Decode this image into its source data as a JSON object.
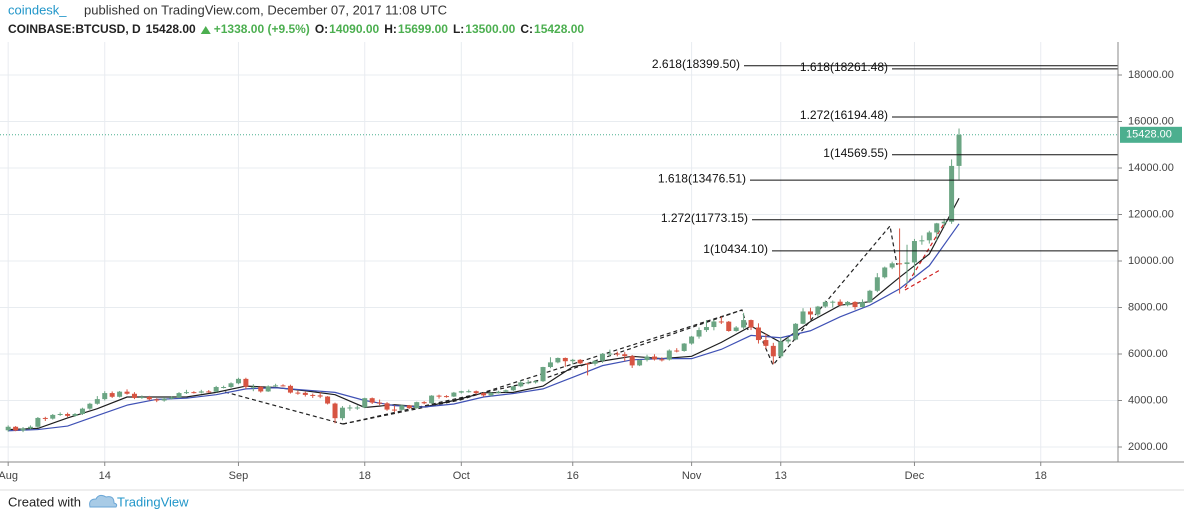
{
  "header": {
    "author": "coindesk_",
    "published": "published on TradingView.com, December 07, 2017 11:08 UTC",
    "symbol": "COINBASE:BTCUSD, D",
    "last": "15428.00",
    "change": "+1338.00 (+9.5%)",
    "o_label": "O:",
    "o": "14090.00",
    "h_label": "H:",
    "h": "15699.00",
    "l_label": "L:",
    "l": "13500.00",
    "c_label": "C:",
    "c": "15428.00"
  },
  "footer": {
    "created": "Created with",
    "brand": "TradingView"
  },
  "chart_data": {
    "type": "candlestick",
    "grid": true,
    "up_color": "#6ba583",
    "down_color": "#d75442",
    "xlim": [
      -1.1,
      149.4
    ],
    "xticks": [
      {
        "value": 0,
        "label": "Aug"
      },
      {
        "value": 13,
        "label": "14"
      },
      {
        "value": 31,
        "label": "Sep"
      },
      {
        "value": 48,
        "label": "18"
      },
      {
        "value": 61,
        "label": "Oct"
      },
      {
        "value": 76,
        "label": "16"
      },
      {
        "value": 92,
        "label": "Nov"
      },
      {
        "value": 104,
        "label": "13"
      },
      {
        "value": 122,
        "label": "Dec"
      },
      {
        "value": 139,
        "label": "18"
      }
    ],
    "ylim": [
      1355,
      19420
    ],
    "yticks": [
      {
        "value": 2000,
        "label": "2000.00"
      },
      {
        "value": 4000,
        "label": "4000.00"
      },
      {
        "value": 6000,
        "label": "6000.00"
      },
      {
        "value": 8000,
        "label": "8000.00"
      },
      {
        "value": 10000,
        "label": "10000.00"
      },
      {
        "value": 12000,
        "label": "12000.00"
      },
      {
        "value": 14000,
        "label": "14000.00"
      },
      {
        "value": 16000,
        "label": "16000.00"
      },
      {
        "value": 18000,
        "label": "18000.00"
      }
    ],
    "last_price": {
      "value": 15428,
      "label": "15428.00",
      "color": "#4caf8f"
    },
    "candles": {
      "open": [
        2720,
        2870,
        2710,
        2800,
        2870,
        3250,
        3220,
        3380,
        3420,
        3340,
        3420,
        3650,
        3860,
        4060,
        4320,
        4160,
        4380,
        4290,
        4110,
        4150,
        4050,
        4000,
        4080,
        4140,
        4320,
        4360,
        4340,
        4390,
        4380,
        4580,
        4580,
        4740,
        4930,
        4590,
        4590,
        4390,
        4610,
        4650,
        4630,
        4340,
        4330,
        4240,
        4220,
        4170,
        3870,
        3240,
        3690,
        3700,
        3700,
        4100,
        3910,
        3880,
        3610,
        3600,
        3790,
        3670,
        3930,
        3880,
        4210,
        4190,
        4170,
        4340,
        4400,
        4400,
        4320,
        4220,
        4330,
        4380,
        4440,
        4610,
        4780,
        4780,
        4830,
        5440,
        5640,
        5830,
        5690,
        5750,
        5600,
        5580,
        5710,
        6010,
        6020,
        5990,
        5910,
        5510,
        5740,
        5890,
        5770,
        5760,
        6150,
        6130,
        6450,
        6750,
        7030,
        7160,
        7400,
        7390,
        6990,
        7140,
        7460,
        7140,
        6600,
        6350,
        5900,
        6540,
        6620,
        7300,
        7830,
        7700,
        8040,
        8240,
        8250,
        8100,
        8240,
        8020,
        8230,
        8720,
        9300,
        9720,
        9900,
        9870,
        9940,
        10860,
        10890,
        11230,
        11620,
        11690,
        14090
      ],
      "high": [
        2930,
        2900,
        2860,
        2930,
        3290,
        3300,
        3420,
        3490,
        3480,
        3460,
        3690,
        3900,
        4190,
        4400,
        4390,
        4410,
        4480,
        4360,
        4220,
        4200,
        4100,
        4140,
        4180,
        4360,
        4460,
        4400,
        4460,
        4450,
        4630,
        4640,
        4780,
        4980,
        4980,
        4700,
        4620,
        4650,
        4720,
        4700,
        4680,
        4420,
        4380,
        4300,
        4350,
        4190,
        3910,
        3760,
        3810,
        3790,
        4120,
        4130,
        4040,
        3930,
        3780,
        3830,
        3810,
        3950,
        3970,
        4230,
        4250,
        4230,
        4370,
        4420,
        4470,
        4430,
        4350,
        4360,
        4420,
        4470,
        4630,
        4880,
        4890,
        4880,
        5450,
        5860,
        5850,
        5850,
        5790,
        5780,
        5620,
        5740,
        6040,
        6190,
        6100,
        6080,
        5960,
        5760,
        5970,
        5990,
        5860,
        6200,
        6250,
        6470,
        6780,
        7140,
        7460,
        7480,
        7610,
        7420,
        7200,
        7770,
        7480,
        7320,
        6870,
        6480,
        6740,
        6730,
        7330,
        7970,
        7990,
        8070,
        8300,
        8300,
        8350,
        8280,
        8270,
        8350,
        8760,
        9480,
        9760,
        9970,
        11400,
        10700,
        10950,
        11100,
        11300,
        11640,
        11820,
        14370,
        15699
      ],
      "low": [
        2660,
        2680,
        2640,
        2760,
        2820,
        3120,
        3180,
        3340,
        3280,
        3300,
        3380,
        3600,
        3820,
        4000,
        4110,
        4130,
        4250,
        4060,
        4070,
        4000,
        3930,
        3950,
        4040,
        4100,
        4280,
        4300,
        4300,
        4330,
        4350,
        4520,
        4540,
        4700,
        4500,
        4400,
        4340,
        4370,
        4580,
        4600,
        4300,
        4250,
        4170,
        4110,
        4100,
        3830,
        3020,
        3150,
        3560,
        3600,
        3680,
        3850,
        3800,
        3560,
        3500,
        3570,
        3640,
        3650,
        3840,
        3860,
        4080,
        4120,
        4150,
        4300,
        4340,
        4260,
        4160,
        4170,
        4300,
        4350,
        4410,
        4570,
        4700,
        4730,
        4800,
        5390,
        5600,
        5450,
        5560,
        5570,
        5080,
        5500,
        5620,
        5900,
        5900,
        5690,
        5400,
        5480,
        5680,
        5720,
        5680,
        5720,
        6070,
        6100,
        6400,
        6660,
        6950,
        7020,
        7290,
        6960,
        6960,
        7070,
        7030,
        6450,
        6230,
        5560,
        5820,
        6450,
        6590,
        7280,
        7500,
        7600,
        7980,
        8000,
        8050,
        8050,
        7910,
        7990,
        8200,
        8660,
        9250,
        9650,
        8600,
        9000,
        9380,
        10700,
        10750,
        10880,
        11450,
        11600,
        13500
      ],
      "close": [
        2870,
        2710,
        2800,
        2870,
        3250,
        3220,
        3380,
        3420,
        3340,
        3420,
        3650,
        3860,
        4060,
        4320,
        4160,
        4380,
        4290,
        4110,
        4150,
        4050,
        4000,
        4080,
        4140,
        4320,
        4360,
        4340,
        4390,
        4380,
        4580,
        4580,
        4740,
        4930,
        4590,
        4590,
        4390,
        4610,
        4650,
        4630,
        4340,
        4330,
        4240,
        4220,
        4170,
        3870,
        3240,
        3690,
        3700,
        3700,
        4100,
        3910,
        3880,
        3610,
        3600,
        3790,
        3670,
        3930,
        3880,
        4210,
        4190,
        4170,
        4340,
        4400,
        4400,
        4320,
        4220,
        4330,
        4380,
        4440,
        4610,
        4780,
        4780,
        4830,
        5440,
        5640,
        5830,
        5690,
        5750,
        5600,
        5580,
        5710,
        6010,
        6020,
        5990,
        5910,
        5510,
        5740,
        5890,
        5770,
        5760,
        6150,
        6130,
        6450,
        6750,
        7030,
        7160,
        7400,
        7390,
        6990,
        7140,
        7460,
        7140,
        6600,
        6350,
        5900,
        6540,
        6620,
        7300,
        7830,
        7700,
        8040,
        8240,
        8250,
        8100,
        8240,
        8020,
        8230,
        8720,
        9300,
        9720,
        9900,
        9870,
        9940,
        10860,
        10890,
        11230,
        11620,
        11690,
        14090,
        15428
      ]
    },
    "series": [
      {
        "color": "#1e1e1e",
        "x": [
          0,
          4,
          8,
          12,
          16,
          20,
          24,
          28,
          32,
          36,
          40,
          44,
          48,
          52,
          56,
          60,
          64,
          68,
          72,
          76,
          80,
          84,
          88,
          92,
          96,
          100,
          104,
          108,
          112,
          116,
          120,
          124,
          128
        ],
        "values": [
          2750,
          2800,
          3250,
          3650,
          4150,
          4150,
          4150,
          4350,
          4620,
          4560,
          4420,
          4250,
          3700,
          3820,
          3720,
          4000,
          4330,
          4350,
          4620,
          5450,
          5700,
          5900,
          5800,
          5900,
          6500,
          7200,
          6500,
          7400,
          8100,
          8250,
          9300,
          10300,
          12700
        ]
      },
      {
        "color": "#3f51b5",
        "x": [
          0,
          4,
          8,
          12,
          16,
          20,
          24,
          28,
          32,
          36,
          40,
          44,
          48,
          52,
          56,
          60,
          64,
          68,
          72,
          76,
          80,
          84,
          88,
          92,
          96,
          100,
          104,
          108,
          112,
          116,
          120,
          124,
          128
        ],
        "values": [
          2700,
          2750,
          2900,
          3350,
          3800,
          4050,
          4100,
          4250,
          4500,
          4550,
          4450,
          4350,
          4000,
          3780,
          3720,
          3850,
          4150,
          4300,
          4500,
          5000,
          5500,
          5750,
          5800,
          5800,
          6200,
          6800,
          6700,
          7000,
          7600,
          8100,
          8800,
          9800,
          11600
        ]
      }
    ],
    "levels": [
      {
        "label": "2.618(18399.50)",
        "value": 18399.5
      },
      {
        "label": "1.618(18261.48)",
        "value": 18261.48
      },
      {
        "label": "1.272(16194.48)",
        "value": 16194.48
      },
      {
        "label": "1(14569.55)",
        "value": 14569.55
      },
      {
        "label": "1.618(13476.51)",
        "value": 13476.51
      },
      {
        "label": "1.272(11773.15)",
        "value": 11773.15
      },
      {
        "label": "1(10434.10)",
        "value": 10434.1
      }
    ]
  }
}
